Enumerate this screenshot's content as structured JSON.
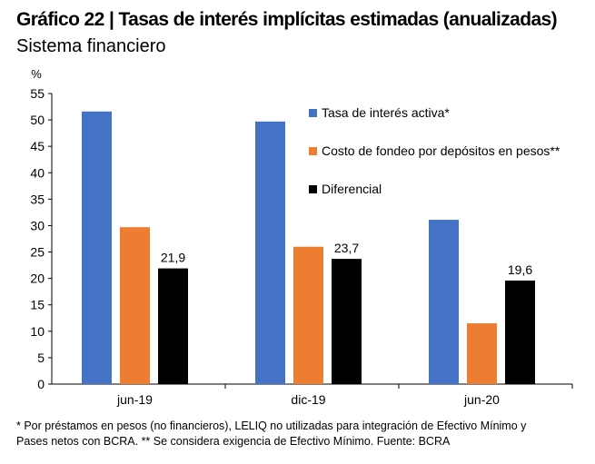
{
  "header": {
    "title": "Gráfico 22 | Tasas de interés implícitas estimadas (anualizadas)",
    "subtitle": "Sistema financiero"
  },
  "footnote": {
    "line1": "* Por préstamos en pesos (no financieros), LELIQ no utilizadas para integración de Efectivo Mínimo y",
    "line2": "Pases netos con BCRA. ** Se considera exigencia de Efectivo Mínimo. Fuente: BCRA"
  },
  "colors": {
    "series": [
      "#4472C4",
      "#ED7D31",
      "#000000"
    ],
    "axis": "#000000"
  },
  "chart_data": {
    "type": "bar",
    "ylabel": "%",
    "ylim": [
      0,
      55
    ],
    "yticks": [
      0,
      5,
      10,
      15,
      20,
      25,
      30,
      35,
      40,
      45,
      50,
      55
    ],
    "grid": false,
    "legend_placement": "top-right",
    "categories": [
      "jun-19",
      "dic-19",
      "jun-20"
    ],
    "series": [
      {
        "name": "Tasa de interés activa*",
        "values": [
          51.6,
          49.7,
          31.1
        ],
        "labels": [
          "",
          "",
          ""
        ]
      },
      {
        "name": "Costo de fondeo por depósitos en pesos**",
        "values": [
          29.7,
          26.0,
          11.5
        ],
        "labels": [
          "",
          "",
          ""
        ]
      },
      {
        "name": "Diferencial",
        "values": [
          21.9,
          23.7,
          19.6
        ],
        "labels": [
          "21,9",
          "23,7",
          "19,6"
        ]
      }
    ]
  }
}
